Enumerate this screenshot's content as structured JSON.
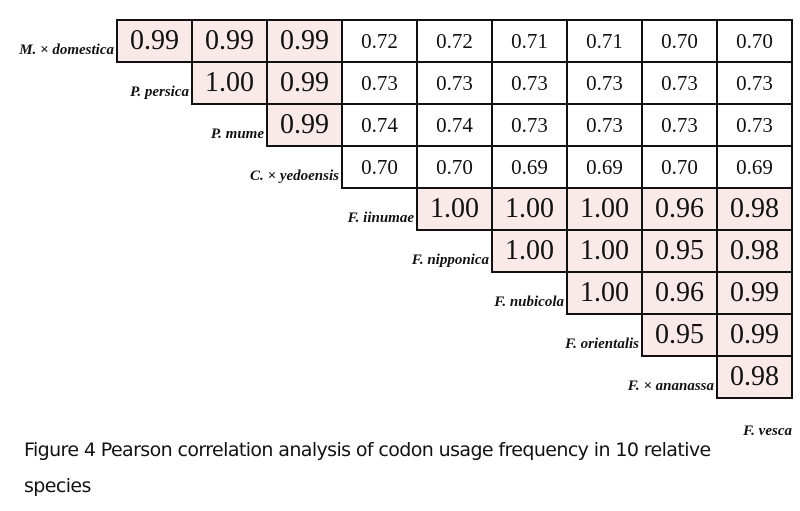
{
  "chart_data": {
    "type": "heatmap",
    "title": "Figure 4 Pearson correlation analysis of codon usage frequency in 10 relative species",
    "layout": "upper-triangular correlation matrix; row labels at left of each row's first cell; last species label (F. vesca) below the matrix",
    "species": [
      "M. × domestica",
      "P. persica",
      "P. mume",
      "C. × yedoensis",
      "F. iinumae",
      "F. nipponica",
      "F. nubicola",
      "F. orientalis",
      "F. × ananassa",
      "F. vesca"
    ],
    "matrix": [
      [
        "0.99",
        "0.99",
        "0.99",
        "0.72",
        "0.72",
        "0.71",
        "0.71",
        "0.70",
        "0.70"
      ],
      [
        "1.00",
        "0.99",
        "0.73",
        "0.73",
        "0.73",
        "0.73",
        "0.73",
        "0.73"
      ],
      [
        "0.99",
        "0.74",
        "0.74",
        "0.73",
        "0.73",
        "0.73",
        "0.73"
      ],
      [
        "0.70",
        "0.70",
        "0.69",
        "0.69",
        "0.70",
        "0.69"
      ],
      [
        "1.00",
        "1.00",
        "1.00",
        "0.96",
        "0.98"
      ],
      [
        "1.00",
        "1.00",
        "0.95",
        "0.98"
      ],
      [
        "1.00",
        "0.96",
        "0.99"
      ],
      [
        "0.95",
        "0.99"
      ],
      [
        "0.98"
      ]
    ],
    "highlight_threshold": 0.9,
    "colors": {
      "high": "#f9e9e9",
      "low": "#ffffff",
      "border": "#111111"
    }
  },
  "caption": {
    "text": "Figure 4 Pearson correlation analysis of codon usage frequency in 10 relative species"
  }
}
